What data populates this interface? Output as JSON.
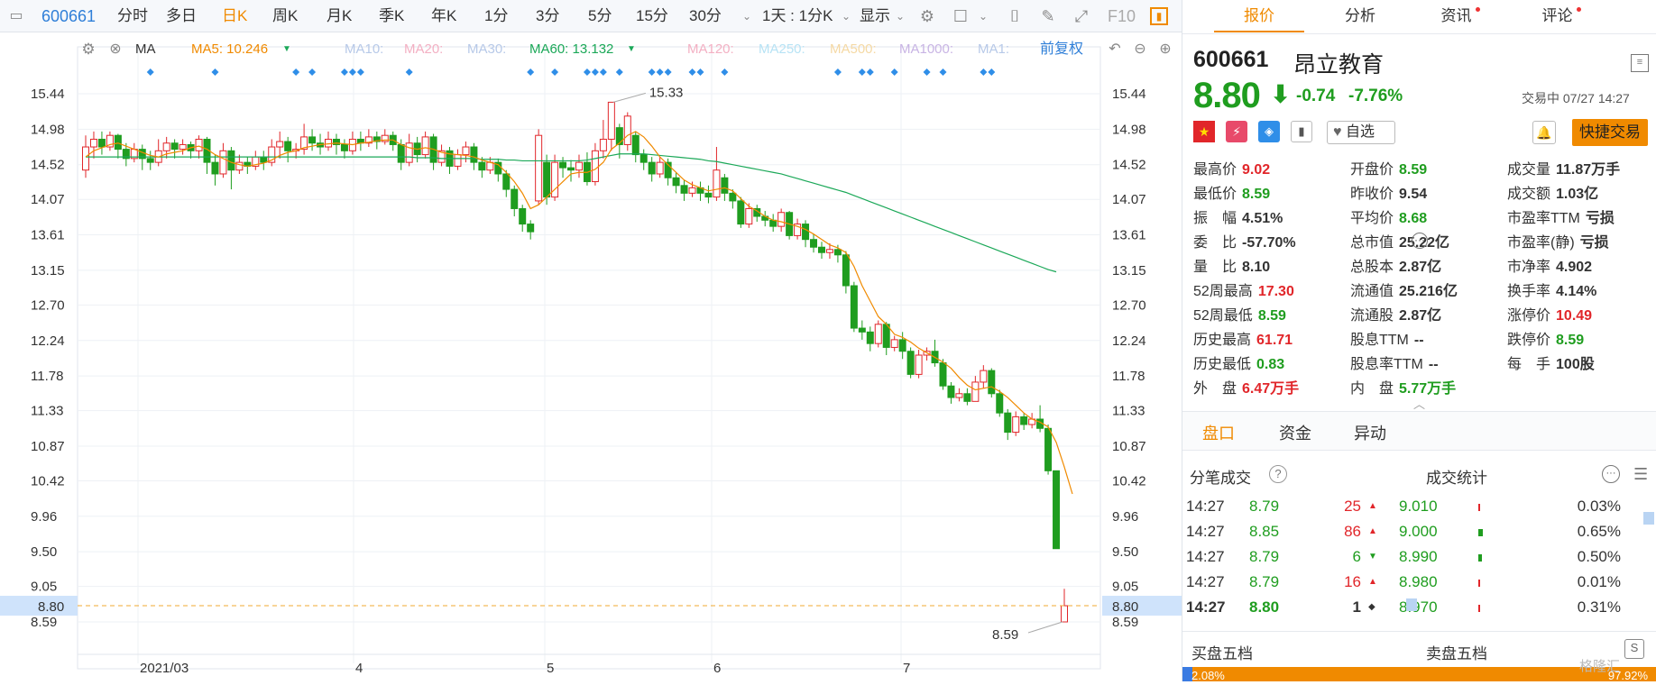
{
  "toolbar": {
    "code": "600661",
    "periods": [
      "分时",
      "多日",
      "日K",
      "周K",
      "月K",
      "季K",
      "年K",
      "1分",
      "3分",
      "5分",
      "15分",
      "30分"
    ],
    "active_period": "日K",
    "combo": "1天 : 1分K",
    "display": "显示",
    "f10": "F10"
  },
  "ma_bar": {
    "ma_label": "MA",
    "ma5": "MA5: 10.246",
    "ma10": "MA10:",
    "ma20": "MA20:",
    "ma30": "MA30:",
    "ma60": "MA60: 13.132",
    "ma120": "MA120:",
    "ma250": "MA250:",
    "ma500": "MA500:",
    "ma1000": "MA1000:",
    "ma1": "MA1:",
    "adjust": "前复权",
    "colors": {
      "ma5": "#f08a00",
      "ma60": "#1ba858",
      "faded": "#b7c9e8",
      "faded_pink": "#f3b0c3",
      "faded_yellow": "#f5d9a4"
    }
  },
  "chart_data": {
    "type": "candlestick",
    "y_ticks": [
      "15.44",
      "14.98",
      "14.52",
      "14.07",
      "13.61",
      "13.15",
      "12.70",
      "12.24",
      "11.78",
      "11.33",
      "10.87",
      "10.42",
      "9.96",
      "9.50",
      "9.05",
      "8.59"
    ],
    "ylim": [
      8.59,
      15.44
    ],
    "x_ticks": [
      "2021/03",
      "4",
      "5",
      "6",
      "7"
    ],
    "current_price_label": "8.80",
    "high_annotation": "15.33",
    "low_annotation": "8.59",
    "candles": [
      [
        14.45,
        14.75,
        14.9,
        14.35
      ],
      [
        14.75,
        14.85,
        14.95,
        14.6
      ],
      [
        14.85,
        14.75,
        14.95,
        14.65
      ],
      [
        14.75,
        14.9,
        14.95,
        14.7
      ],
      [
        14.9,
        14.72,
        14.92,
        14.6
      ],
      [
        14.72,
        14.6,
        14.8,
        14.5
      ],
      [
        14.6,
        14.72,
        14.8,
        14.55
      ],
      [
        14.72,
        14.6,
        14.78,
        14.45
      ],
      [
        14.6,
        14.55,
        14.7,
        14.45
      ],
      [
        14.55,
        14.7,
        14.85,
        14.5
      ],
      [
        14.7,
        14.8,
        14.88,
        14.6
      ],
      [
        14.8,
        14.72,
        14.85,
        14.6
      ],
      [
        14.72,
        14.78,
        14.85,
        14.65
      ],
      [
        14.78,
        14.7,
        14.82,
        14.6
      ],
      [
        14.7,
        14.85,
        14.9,
        14.6
      ],
      [
        14.85,
        14.55,
        14.88,
        14.4
      ],
      [
        14.55,
        14.4,
        14.65,
        14.25
      ],
      [
        14.4,
        14.7,
        14.8,
        14.35
      ],
      [
        14.7,
        14.45,
        14.75,
        14.2
      ],
      [
        14.45,
        14.55,
        14.65,
        14.4
      ],
      [
        14.55,
        14.5,
        14.62,
        14.4
      ],
      [
        14.5,
        14.62,
        14.7,
        14.45
      ],
      [
        14.62,
        14.55,
        14.7,
        14.45
      ],
      [
        14.55,
        14.75,
        14.85,
        14.5
      ],
      [
        14.75,
        14.82,
        14.95,
        14.6
      ],
      [
        14.82,
        14.7,
        14.88,
        14.55
      ],
      [
        14.7,
        14.72,
        14.8,
        14.6
      ],
      [
        14.72,
        14.88,
        15.05,
        14.65
      ],
      [
        14.88,
        14.8,
        14.98,
        14.7
      ],
      [
        14.8,
        14.75,
        14.92,
        14.65
      ],
      [
        14.75,
        14.85,
        14.95,
        14.7
      ],
      [
        14.85,
        14.78,
        14.92,
        14.65
      ],
      [
        14.78,
        14.7,
        14.85,
        14.6
      ],
      [
        14.7,
        14.85,
        14.95,
        14.65
      ],
      [
        14.85,
        14.8,
        14.95,
        14.7
      ],
      [
        14.8,
        14.88,
        14.98,
        14.75
      ],
      [
        14.88,
        14.82,
        14.95,
        14.72
      ],
      [
        14.82,
        14.9,
        14.98,
        14.78
      ],
      [
        14.9,
        14.78,
        14.95,
        14.7
      ],
      [
        14.78,
        14.55,
        14.85,
        14.45
      ],
      [
        14.55,
        14.8,
        14.92,
        14.5
      ],
      [
        14.8,
        14.65,
        14.88,
        14.55
      ],
      [
        14.65,
        14.88,
        14.95,
        14.6
      ],
      [
        14.88,
        14.55,
        14.92,
        14.45
      ],
      [
        14.55,
        14.7,
        14.78,
        14.5
      ],
      [
        14.7,
        14.5,
        14.75,
        14.4
      ],
      [
        14.5,
        14.65,
        14.72,
        14.45
      ],
      [
        14.65,
        14.75,
        14.82,
        14.55
      ],
      [
        14.75,
        14.55,
        14.8,
        14.45
      ],
      [
        14.55,
        14.45,
        14.62,
        14.35
      ],
      [
        14.45,
        14.55,
        14.62,
        14.4
      ],
      [
        14.55,
        14.4,
        14.6,
        14.3
      ],
      [
        14.4,
        14.2,
        14.45,
        14.1
      ],
      [
        14.2,
        13.95,
        14.25,
        13.85
      ],
      [
        13.95,
        13.75,
        14.0,
        13.65
      ],
      [
        13.75,
        13.65,
        13.8,
        13.55
      ],
      [
        14.05,
        14.9,
        14.98,
        14.0
      ],
      [
        14.55,
        14.1,
        14.65,
        14.0
      ],
      [
        14.1,
        14.55,
        14.65,
        14.05
      ],
      [
        14.55,
        14.48,
        14.62,
        14.35
      ],
      [
        14.48,
        14.45,
        14.58,
        14.3
      ],
      [
        14.45,
        14.55,
        14.65,
        14.35
      ],
      [
        14.55,
        14.3,
        14.68,
        14.25
      ],
      [
        14.3,
        14.7,
        14.8,
        14.25
      ],
      [
        14.7,
        14.85,
        15.1,
        14.6
      ],
      [
        14.85,
        15.33,
        15.33,
        14.7
      ],
      [
        15.0,
        14.78,
        15.05,
        14.6
      ],
      [
        14.78,
        15.15,
        15.2,
        14.7
      ],
      [
        14.9,
        14.65,
        14.95,
        14.55
      ],
      [
        14.65,
        14.55,
        14.72,
        14.45
      ],
      [
        14.55,
        14.4,
        14.62,
        14.3
      ],
      [
        14.4,
        14.55,
        14.62,
        14.35
      ],
      [
        14.55,
        14.35,
        14.6,
        14.25
      ],
      [
        14.35,
        14.25,
        14.42,
        14.15
      ],
      [
        14.25,
        14.15,
        14.32,
        14.05
      ],
      [
        14.15,
        14.22,
        14.3,
        14.1
      ],
      [
        14.22,
        14.15,
        14.3,
        14.05
      ],
      [
        14.15,
        14.1,
        14.25,
        14.02
      ],
      [
        14.1,
        14.45,
        14.75,
        14.05
      ],
      [
        14.35,
        14.15,
        14.4,
        14.05
      ],
      [
        14.15,
        14.05,
        14.2,
        13.95
      ],
      [
        14.05,
        13.75,
        14.1,
        13.7
      ],
      [
        13.75,
        13.95,
        14.02,
        13.7
      ],
      [
        13.95,
        13.85,
        14.0,
        13.78
      ],
      [
        13.85,
        13.8,
        13.92,
        13.72
      ],
      [
        13.8,
        13.72,
        13.88,
        13.65
      ],
      [
        13.72,
        13.9,
        13.95,
        13.65
      ],
      [
        13.9,
        13.6,
        13.92,
        13.55
      ],
      [
        13.6,
        13.75,
        13.82,
        13.55
      ],
      [
        13.75,
        13.55,
        13.8,
        13.45
      ],
      [
        13.55,
        13.45,
        13.62,
        13.38
      ],
      [
        13.45,
        13.38,
        13.52,
        13.3
      ],
      [
        13.38,
        13.42,
        13.5,
        13.3
      ],
      [
        13.42,
        13.35,
        13.48,
        13.25
      ],
      [
        13.35,
        12.95,
        13.4,
        12.85
      ],
      [
        12.95,
        12.4,
        13.0,
        12.35
      ],
      [
        12.4,
        12.35,
        12.5,
        12.25
      ],
      [
        12.35,
        12.2,
        12.42,
        12.1
      ],
      [
        12.2,
        12.45,
        12.5,
        12.15
      ],
      [
        12.45,
        12.15,
        12.48,
        12.05
      ],
      [
        12.15,
        12.25,
        12.3,
        12.1
      ],
      [
        12.25,
        12.1,
        12.35,
        12.0
      ],
      [
        12.1,
        11.8,
        12.15,
        11.75
      ],
      [
        11.8,
        12.05,
        12.12,
        11.75
      ],
      [
        12.05,
        12.1,
        12.15,
        11.98
      ],
      [
        12.1,
        11.95,
        12.25,
        11.9
      ],
      [
        11.95,
        11.65,
        12.0,
        11.6
      ],
      [
        11.65,
        11.5,
        11.7,
        11.42
      ],
      [
        11.5,
        11.55,
        11.62,
        11.45
      ],
      [
        11.55,
        11.45,
        11.62,
        11.4
      ],
      [
        11.45,
        11.7,
        11.78,
        11.45
      ],
      [
        11.7,
        11.85,
        11.92,
        11.62
      ],
      [
        11.85,
        11.55,
        11.88,
        11.5
      ],
      [
        11.55,
        11.3,
        11.6,
        11.25
      ],
      [
        11.3,
        11.05,
        11.35,
        10.95
      ],
      [
        11.05,
        11.25,
        11.32,
        11.0
      ],
      [
        11.25,
        11.15,
        11.3,
        11.08
      ],
      [
        11.15,
        11.22,
        11.3,
        11.1
      ],
      [
        11.22,
        11.1,
        11.4,
        11.05
      ],
      [
        11.1,
        10.55,
        11.15,
        10.5
      ],
      [
        10.55,
        9.54,
        10.55,
        9.54
      ],
      [
        8.59,
        8.8,
        9.02,
        8.59
      ]
    ],
    "ma5": [
      14.62,
      14.7,
      14.74,
      14.78,
      14.8,
      14.76,
      14.72,
      14.68,
      14.64,
      14.62,
      14.66,
      14.68,
      14.7,
      14.74,
      14.76,
      14.72,
      14.65,
      14.6,
      14.55,
      14.52,
      14.5,
      14.52,
      14.54,
      14.58,
      14.64,
      14.68,
      14.7,
      14.74,
      14.76,
      14.78,
      14.79,
      14.8,
      14.79,
      14.78,
      14.8,
      14.81,
      14.83,
      14.84,
      14.84,
      14.78,
      14.74,
      14.72,
      14.74,
      14.72,
      14.68,
      14.66,
      14.65,
      14.64,
      14.62,
      14.58,
      14.55,
      14.52,
      14.42,
      14.3,
      14.15,
      13.95,
      14.0,
      14.1,
      14.2,
      14.3,
      14.4,
      14.42,
      14.42,
      14.46,
      14.55,
      14.72,
      14.8,
      14.9,
      14.95,
      14.88,
      14.76,
      14.62,
      14.52,
      14.42,
      14.32,
      14.26,
      14.22,
      14.18,
      14.2,
      14.22,
      14.18,
      14.08,
      13.98,
      13.92,
      13.85,
      13.8,
      13.78,
      13.75,
      13.72,
      13.68,
      13.62,
      13.55,
      13.48,
      13.44,
      13.38,
      13.2,
      12.95,
      12.75,
      12.55,
      12.45,
      12.32,
      12.28,
      12.22,
      12.14,
      12.08,
      12.02,
      11.96,
      11.88,
      11.76,
      11.66,
      11.6,
      11.62,
      11.64,
      11.58,
      11.5,
      11.4,
      11.3,
      11.22,
      11.18,
      11.12,
      10.92,
      10.6,
      10.25
    ],
    "ma60": [
      14.62,
      14.62,
      14.62,
      14.62,
      14.62,
      14.62,
      14.62,
      14.62,
      14.62,
      14.62,
      14.62,
      14.62,
      14.62,
      14.62,
      14.62,
      14.62,
      14.62,
      14.62,
      14.62,
      14.62,
      14.62,
      14.62,
      14.62,
      14.62,
      14.62,
      14.62,
      14.62,
      14.62,
      14.62,
      14.62,
      14.62,
      14.62,
      14.62,
      14.62,
      14.62,
      14.62,
      14.62,
      14.62,
      14.62,
      14.62,
      14.62,
      14.61,
      14.61,
      14.61,
      14.6,
      14.6,
      14.6,
      14.6,
      14.6,
      14.59,
      14.59,
      14.59,
      14.58,
      14.58,
      14.57,
      14.57,
      14.57,
      14.57,
      14.57,
      14.57,
      14.57,
      14.57,
      14.58,
      14.6,
      14.62,
      14.64,
      14.66,
      14.66,
      14.66,
      14.66,
      14.65,
      14.64,
      14.63,
      14.62,
      14.61,
      14.6,
      14.59,
      14.57,
      14.56,
      14.54,
      14.52,
      14.5,
      14.48,
      14.46,
      14.44,
      14.42,
      14.4,
      14.37,
      14.34,
      14.31,
      14.28,
      14.25,
      14.22,
      14.19,
      14.16,
      14.12,
      14.08,
      14.04,
      14.0,
      13.96,
      13.92,
      13.88,
      13.84,
      13.8,
      13.76,
      13.72,
      13.68,
      13.64,
      13.6,
      13.56,
      13.52,
      13.48,
      13.44,
      13.4,
      13.36,
      13.32,
      13.28,
      13.24,
      13.2,
      13.16,
      13.13
    ],
    "marker_columns": [
      8,
      16,
      26,
      28,
      32,
      33,
      34,
      40,
      55,
      58,
      62,
      63,
      64,
      66,
      70,
      71,
      72,
      75,
      76,
      79,
      93,
      96,
      97,
      100,
      104,
      106,
      111,
      112
    ]
  },
  "quote": {
    "code": "600661",
    "name": "昂立教育",
    "price": "8.80",
    "change": "-0.74",
    "change_pct": "-7.76%",
    "status_time": "交易中 07/27 14:27",
    "watchlist_label": "自选",
    "quick_trade": "快捷交易",
    "colors": {
      "up": "#e1262a",
      "down": "#1f9d1f",
      "accent": "#f08a00"
    }
  },
  "stats": [
    {
      "label": "最高价",
      "value": "9.02",
      "color": "red"
    },
    {
      "label": "开盘价",
      "value": "8.59",
      "color": "grn"
    },
    {
      "label": "成交量",
      "value": "11.87万手",
      "color": "blk"
    },
    {
      "label": "最低价",
      "value": "8.59",
      "color": "grn"
    },
    {
      "label": "昨收价",
      "value": "9.54",
      "color": "blk"
    },
    {
      "label": "成交额",
      "value": "1.03亿",
      "color": "blk"
    },
    {
      "label": "振　幅",
      "value": "4.51%",
      "color": "blk"
    },
    {
      "label": "平均价",
      "value": "8.68",
      "color": "grn"
    },
    {
      "label": "市盈率TTM",
      "value": "亏损",
      "color": "blk"
    },
    {
      "label": "委　比",
      "value": "-57.70%",
      "color": "blk"
    },
    {
      "label": "总市值",
      "value": "25.22亿",
      "color": "blk"
    },
    {
      "label": "市盈率(静)",
      "value": "亏损",
      "color": "blk"
    },
    {
      "label": "量　比",
      "value": "8.10",
      "color": "blk"
    },
    {
      "label": "总股本",
      "value": "2.87亿",
      "color": "blk"
    },
    {
      "label": "市净率",
      "value": "4.902",
      "color": "blk"
    },
    {
      "label": "52周最高",
      "value": "17.30",
      "color": "red"
    },
    {
      "label": "流通值",
      "value": "25.216亿",
      "color": "blk"
    },
    {
      "label": "换手率",
      "value": "4.14%",
      "color": "blk"
    },
    {
      "label": "52周最低",
      "value": "8.59",
      "color": "grn"
    },
    {
      "label": "流通股",
      "value": "2.87亿",
      "color": "blk"
    },
    {
      "label": "涨停价",
      "value": "10.49",
      "color": "red"
    },
    {
      "label": "历史最高",
      "value": "61.71",
      "color": "red"
    },
    {
      "label": "股息TTM",
      "value": "--",
      "color": "blk"
    },
    {
      "label": "跌停价",
      "value": "8.59",
      "color": "grn"
    },
    {
      "label": "历史最低",
      "value": "0.83",
      "color": "grn"
    },
    {
      "label": "股息率TTM",
      "value": "--",
      "color": "blk"
    },
    {
      "label": "每　手",
      "value": "100股",
      "color": "blk"
    },
    {
      "label": "外　盘",
      "value": "6.47万手",
      "color": "red"
    },
    {
      "label": "内　盘",
      "value": "5.77万手",
      "color": "grn"
    }
  ],
  "right_tabs": [
    "报价",
    "分析",
    "资讯",
    "评论"
  ],
  "sub_tabs": [
    "盘口",
    "资金",
    "异动"
  ],
  "ticks_title": "分笔成交",
  "deal_title": "成交统计",
  "ticks": [
    {
      "time": "14:27",
      "price": "8.79",
      "vol": "25",
      "dir": "up",
      "bold": false
    },
    {
      "time": "14:27",
      "price": "8.85",
      "vol": "86",
      "dir": "up",
      "bold": false
    },
    {
      "time": "14:27",
      "price": "8.79",
      "vol": "6",
      "dir": "down",
      "bold": false
    },
    {
      "time": "14:27",
      "price": "8.79",
      "vol": "16",
      "dir": "up",
      "bold": false
    },
    {
      "time": "14:27",
      "price": "8.80",
      "vol": "1",
      "dir": "flat",
      "bold": true
    }
  ],
  "deal_stats": [
    {
      "price": "9.010",
      "pct": "0.03%",
      "bar": 0.03
    },
    {
      "price": "9.000",
      "pct": "0.65%",
      "bar": 0.65
    },
    {
      "price": "8.990",
      "pct": "0.50%",
      "bar": 0.5
    },
    {
      "price": "8.980",
      "pct": "0.01%",
      "bar": 0.01
    },
    {
      "price": "8.970",
      "pct": "0.31%",
      "bar": 0.31
    }
  ],
  "bottom": {
    "buy5": "买盘五档",
    "sell5": "卖盘五档",
    "left_pct": "2.08%",
    "right_pct": "97.92%",
    "left_share": 0.0208,
    "watermark": "格隆汇"
  }
}
